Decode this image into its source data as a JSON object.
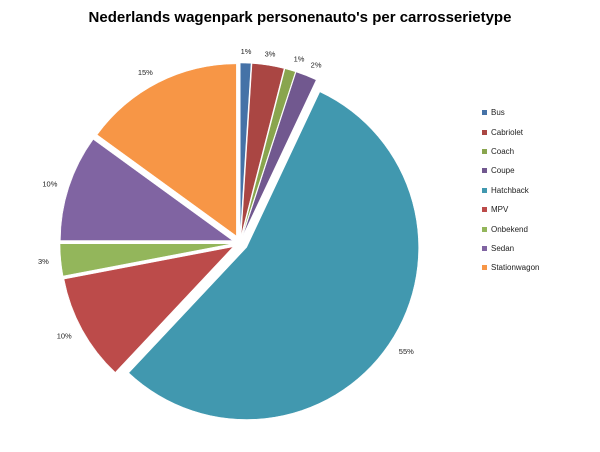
{
  "chart_data": {
    "type": "pie",
    "title": "Nederlands wagenpark personenauto's per carrosserietype",
    "legend_position": "right",
    "exploded": true,
    "categories": [
      "Bus",
      "Cabriolet",
      "Coach",
      "Coupe",
      "Hatchback",
      "MPV",
      "Onbekend",
      "Sedan",
      "Stationwagon"
    ],
    "values": [
      1,
      3,
      1,
      2,
      55,
      10,
      3,
      10,
      15
    ],
    "data_labels": [
      "1%",
      "3%",
      "1%",
      "2%",
      "55%",
      "10%",
      "3%",
      "10%",
      "15%"
    ],
    "colors": [
      "#4572A7",
      "#AA4643",
      "#89A54E",
      "#71588F",
      "#4198AF",
      "#BC4B4A",
      "#93B65B",
      "#8064A2",
      "#F79646"
    ]
  }
}
